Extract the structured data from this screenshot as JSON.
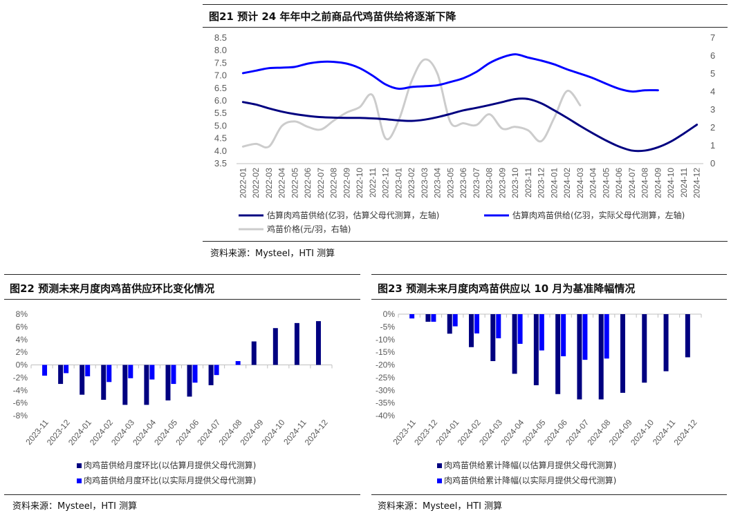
{
  "panels": {
    "p21": {
      "title": "图21 预计 24 年年中之前商品代鸡苗供给将逐渐下降",
      "source": "资料来源：Mysteel，HTI 测算"
    },
    "p22": {
      "title": "图22 预测未来月度肉鸡苗供应环比变化情况",
      "source": "资料来源：Mysteel，HTI 测算"
    },
    "p23": {
      "title": "图23 预测未来月度肉鸡苗供应以 10 月为基准降幅情况",
      "source": "资料来源：Mysteel，HTI 测算"
    }
  },
  "chart_data": [
    {
      "id": "chart21",
      "type": "line",
      "x": [
        "2022-01",
        "2022-02",
        "2022-03",
        "2022-04",
        "2022-05",
        "2022-06",
        "2022-07",
        "2022-08",
        "2022-09",
        "2022-10",
        "2022-11",
        "2022-12",
        "2023-01",
        "2023-02",
        "2023-03",
        "2023-04",
        "2023-05",
        "2023-06",
        "2023-07",
        "2023-08",
        "2023-09",
        "2023-10",
        "2023-11",
        "2023-12",
        "2024-01",
        "2024-02",
        "2024-03",
        "2024-04",
        "2024-05",
        "2024-06",
        "2024-07",
        "2024-08",
        "2024-09",
        "2024-10",
        "2024-11",
        "2024-12"
      ],
      "left_axis": {
        "ylim": [
          3.5,
          8.5
        ],
        "ticks": [
          "3.5",
          "4.0",
          "4.5",
          "5.0",
          "5.5",
          "6.0",
          "6.5",
          "7.0",
          "7.5",
          "8.0",
          "8.5"
        ]
      },
      "right_axis": {
        "ylim": [
          0,
          7
        ],
        "ticks": [
          "0",
          "1",
          "2",
          "3",
          "4",
          "5",
          "6",
          "7"
        ]
      },
      "series": [
        {
          "name": "估算肉鸡苗供给(亿羽，估算父母代测算，左轴)",
          "axis": "left",
          "color": "#000080",
          "width": 3,
          "values": [
            5.95,
            5.85,
            5.7,
            5.57,
            5.47,
            5.4,
            5.35,
            5.33,
            5.32,
            5.32,
            5.3,
            5.27,
            5.22,
            5.2,
            5.25,
            5.35,
            5.48,
            5.62,
            5.72,
            5.83,
            5.95,
            6.07,
            6.07,
            5.9,
            5.62,
            5.32,
            5.0,
            4.7,
            4.42,
            4.18,
            4.02,
            4.02,
            4.15,
            4.38,
            4.7,
            5.05
          ]
        },
        {
          "name": "估算肉鸡苗供给(亿羽，实际父母代测算，左轴)",
          "axis": "left",
          "color": "#0000ff",
          "width": 3,
          "values": [
            7.1,
            7.2,
            7.3,
            7.32,
            7.35,
            7.48,
            7.55,
            7.55,
            7.48,
            7.3,
            7.0,
            6.65,
            6.48,
            6.55,
            6.58,
            6.62,
            6.75,
            6.9,
            7.15,
            7.5,
            7.73,
            7.85,
            7.72,
            7.6,
            7.45,
            7.25,
            7.08,
            6.9,
            6.68,
            6.48,
            6.37,
            6.42,
            6.42,
            null,
            null,
            null
          ]
        },
        {
          "name": "鸡苗价格(元/羽，右轴)",
          "axis": "right",
          "color": "#cccccc",
          "width": 3,
          "values": [
            0.95,
            1.1,
            0.95,
            2.1,
            2.35,
            2.05,
            1.9,
            2.4,
            2.85,
            3.15,
            3.8,
            1.4,
            2.4,
            4.6,
            5.8,
            5.0,
            2.3,
            2.25,
            2.15,
            2.75,
            1.95,
            2.05,
            1.85,
            1.25,
            2.55,
            4.05,
            3.25,
            null,
            null,
            null,
            null,
            null,
            null,
            null,
            null,
            null
          ]
        }
      ]
    },
    {
      "id": "chart22",
      "type": "bar",
      "categories": [
        "2023-11",
        "2023-12",
        "2024-01",
        "2024-02",
        "2024-03",
        "2024-04",
        "2024-05",
        "2024-06",
        "2024-07",
        "2024-08",
        "2024-09",
        "2024-10",
        "2024-11",
        "2024-12"
      ],
      "ylim": [
        -8,
        8
      ],
      "yticks": [
        "-8%",
        "-6%",
        "-4%",
        "-2%",
        "0%",
        "2%",
        "4%",
        "6%",
        "8%"
      ],
      "series": [
        {
          "name": "肉鸡苗供给月度环比(以估算月提供父母代测算)",
          "color": "#000080",
          "values": [
            null,
            -3.0,
            -4.7,
            -5.5,
            -6.3,
            -6.3,
            -5.6,
            -5.0,
            -3.2,
            null,
            3.7,
            5.8,
            6.6,
            6.9
          ]
        },
        {
          "name": "肉鸡苗供给月度环比(以实际月提供父母代测算)",
          "color": "#0000ff",
          "values": [
            -1.7,
            -1.3,
            -1.8,
            -2.7,
            -2.1,
            -2.3,
            -3.0,
            -2.8,
            -1.6,
            0.6,
            null,
            null,
            null,
            null
          ]
        }
      ]
    },
    {
      "id": "chart23",
      "type": "bar",
      "categories": [
        "2023-11",
        "2023-12",
        "2024-01",
        "2024-02",
        "2024-03",
        "2024-04",
        "2024-05",
        "2024-06",
        "2024-07",
        "2024-08",
        "2024-09",
        "2024-10",
        "2024-11",
        "2024-12"
      ],
      "ylim": [
        -40,
        0
      ],
      "yticks": [
        "0%",
        "-5%",
        "-10%",
        "-15%",
        "-20%",
        "-25%",
        "-30%",
        "-35%",
        "-40%"
      ],
      "series": [
        {
          "name": "肉鸡苗供给累计降幅(以估算月提供父母代测算)",
          "color": "#000080",
          "values": [
            null,
            -3.0,
            -7.7,
            -13.0,
            -18.5,
            -23.5,
            -28.0,
            -31.5,
            -33.6,
            -33.6,
            -31.0,
            -27.0,
            -22.5,
            -17.0
          ]
        },
        {
          "name": "肉鸡苗供给累计降幅(以实际月提供父母代测算)",
          "color": "#0000ff",
          "values": [
            -1.7,
            -3.0,
            -4.8,
            -7.6,
            -9.5,
            -11.7,
            -14.3,
            -16.6,
            -18.0,
            -17.5,
            null,
            null,
            null,
            null
          ]
        }
      ]
    }
  ]
}
